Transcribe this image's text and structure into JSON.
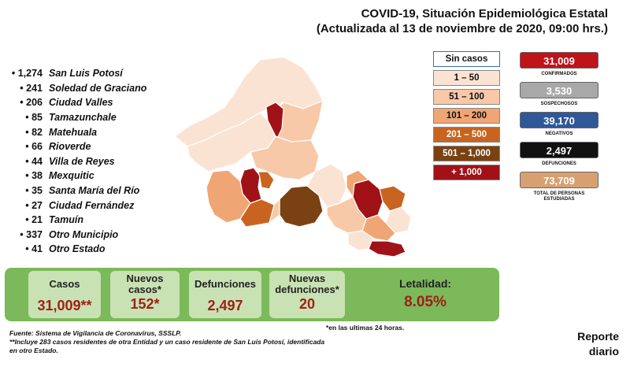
{
  "header": {
    "title_line1": "COVID-19, Situación Epidemiológica Estatal",
    "title_line2": "(Actualizada al 13 de noviembre de 2020, 09:00 hrs.)"
  },
  "municipios": [
    {
      "bullet": "•",
      "count": "1,274",
      "name": "San Luis Potosí"
    },
    {
      "bullet": "•",
      "count": "241",
      "name": "Soledad de Graciano"
    },
    {
      "bullet": "•",
      "count": "206",
      "name": "Ciudad Valles"
    },
    {
      "bullet": "•",
      "count": "85",
      "name": "Tamazunchale"
    },
    {
      "bullet": "•",
      "count": "82",
      "name": "Matehuala"
    },
    {
      "bullet": "•",
      "count": "66",
      "name": "Rioverde"
    },
    {
      "bullet": "•",
      "count": "44",
      "name": "Villa de Reyes"
    },
    {
      "bullet": "•",
      "count": "38",
      "name": "Mexquitic"
    },
    {
      "bullet": "•",
      "count": "35",
      "name": "Santa María del Río"
    },
    {
      "bullet": "•",
      "count": "27",
      "name": "Ciudad Fernández"
    },
    {
      "bullet": "•",
      "count": "21",
      "name": "Tamuín"
    },
    {
      "bullet": "•",
      "count": "337",
      "name": "Otro Municipio"
    },
    {
      "bullet": "•",
      "count": "41",
      "name": "Otro Estado"
    }
  ],
  "legend": [
    {
      "label": "Sin casos",
      "color": "#ffffff",
      "text_color": "#111111"
    },
    {
      "label": "1 – 50",
      "color": "#fbe3d3",
      "text_color": "#111111"
    },
    {
      "label": "51 – 100",
      "color": "#f7c9a8",
      "text_color": "#111111"
    },
    {
      "label": "101 – 200",
      "color": "#f0a674",
      "text_color": "#111111"
    },
    {
      "label": "201 – 500",
      "color": "#c8641f",
      "text_color": "#ffffff"
    },
    {
      "label": "501 – 1,000",
      "color": "#7a4212",
      "text_color": "#ffffff"
    },
    {
      "label": "+ 1,000",
      "color": "#a01218",
      "text_color": "#ffffff"
    }
  ],
  "stats": [
    {
      "value": "31,009",
      "label": "CONFIRMADOS",
      "color": "#c0141b"
    },
    {
      "value": "3,530",
      "label": "SOSPECHOSOS",
      "color": "#a8a8a8"
    },
    {
      "value": "39,170",
      "label": "NEGATIVOS",
      "color": "#2f5896"
    },
    {
      "value": "2,497",
      "label": "DEFUNCIONES",
      "color": "#111111"
    },
    {
      "value": "73,709",
      "label": "TOTAL DE PERSONAS ESTUDIADAS",
      "color": "#d7a070"
    }
  ],
  "banner": {
    "casos_label": "Casos",
    "casos_value": "31,009**",
    "nuevos_casos_label": "Nuevos casos*",
    "nuevos_casos_value": "152*",
    "defunciones_label": "Defunciones",
    "defunciones_value": "2,497",
    "nuevas_defunciones_label": "Nuevas defunciones*",
    "nuevas_defunciones_value": "20",
    "letalidad_label": "Letalidad:",
    "letalidad_value": "8.05%"
  },
  "footer": {
    "last24": "*en las ultimas 24 horas.",
    "fuente": "Fuente: Sistema de Vigilancia de Coronavirus, SSSLP.",
    "nota_line1": "**Incluye 283 casos residentes de otra Entidad y un caso residente de San Luis Potosí, identificada",
    "nota_line2": "en otro Estado.",
    "reporte_line1": "Reporte",
    "reporte_line2": "diario"
  }
}
